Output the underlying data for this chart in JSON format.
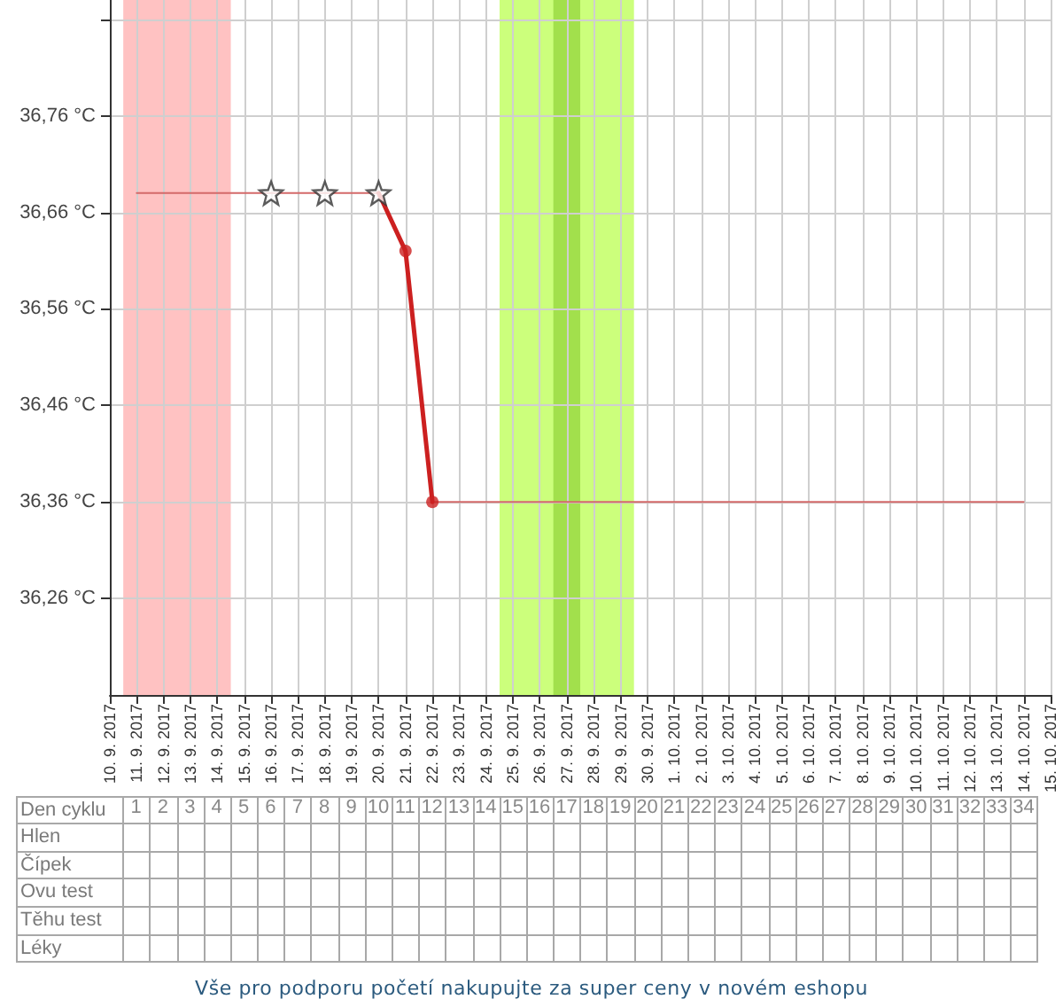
{
  "chart_data": {
    "type": "line",
    "x": [
      "2017-09-11",
      "2017-09-12",
      "2017-09-13",
      "2017-09-14",
      "2017-09-15",
      "2017-09-16",
      "2017-09-17",
      "2017-09-18",
      "2017-09-19",
      "2017-09-20",
      "2017-09-21",
      "2017-09-22",
      "2017-09-23",
      "2017-09-24",
      "2017-09-25",
      "2017-09-26",
      "2017-09-27",
      "2017-09-28",
      "2017-09-29",
      "2017-09-30",
      "2017-10-01",
      "2017-10-02",
      "2017-10-03",
      "2017-10-04",
      "2017-10-05",
      "2017-10-06",
      "2017-10-07",
      "2017-10-08",
      "2017-10-09",
      "2017-10-10",
      "2017-10-11",
      "2017-10-12",
      "2017-10-13",
      "2017-10-14"
    ],
    "series": [
      {
        "color": "#d46a6a",
        "marker": "none",
        "values": [
          36.68,
          36.68,
          36.68,
          36.68,
          36.68,
          36.68,
          36.68,
          36.68,
          36.68,
          36.68,
          null,
          36.36,
          36.36,
          36.36,
          36.36,
          36.36,
          36.36,
          36.36,
          36.36,
          36.36,
          36.36,
          36.36,
          36.36,
          36.36,
          36.36,
          36.36,
          36.36,
          36.36,
          36.36,
          36.36,
          36.36,
          36.36,
          36.36,
          36.36
        ]
      },
      {
        "color": "#cc2020",
        "marker": "none",
        "values": [
          null,
          null,
          null,
          null,
          null,
          null,
          null,
          null,
          null,
          36.68,
          36.62,
          36.36,
          null,
          null,
          null,
          null,
          null,
          null,
          null,
          null,
          null,
          null,
          null,
          null,
          null,
          null,
          null,
          null,
          null,
          null,
          null,
          null,
          null,
          null
        ]
      },
      {
        "type": "scatter",
        "color": "#cc2020",
        "marker": "circle",
        "values": [
          null,
          null,
          null,
          null,
          null,
          null,
          null,
          null,
          null,
          null,
          36.62,
          36.36,
          null,
          null,
          null,
          null,
          null,
          null,
          null,
          null,
          null,
          null,
          null,
          null,
          null,
          null,
          null,
          null,
          null,
          null,
          null,
          null,
          null,
          null
        ]
      },
      {
        "type": "scatter",
        "color": "#333333",
        "marker": "star",
        "values": [
          null,
          null,
          null,
          null,
          null,
          36.68,
          null,
          36.68,
          null,
          36.68,
          null,
          null,
          null,
          null,
          null,
          null,
          null,
          null,
          null,
          null,
          null,
          null,
          null,
          null,
          null,
          null,
          null,
          null,
          null,
          null,
          null,
          null,
          null,
          null
        ]
      }
    ],
    "xlim": [
      "2017-09-10",
      "2017-10-15"
    ],
    "xticks": [
      {
        "value": "2017-09-10",
        "label": "10. 9. 2017"
      },
      {
        "value": "2017-09-11",
        "label": "11. 9. 2017"
      },
      {
        "value": "2017-09-12",
        "label": "12. 9. 2017"
      },
      {
        "value": "2017-09-13",
        "label": "13. 9. 2017"
      },
      {
        "value": "2017-09-14",
        "label": "14. 9. 2017"
      },
      {
        "value": "2017-09-15",
        "label": "15. 9. 2017"
      },
      {
        "value": "2017-09-16",
        "label": "16. 9. 2017"
      },
      {
        "value": "2017-09-17",
        "label": "17. 9. 2017"
      },
      {
        "value": "2017-09-18",
        "label": "18. 9. 2017"
      },
      {
        "value": "2017-09-19",
        "label": "19. 9. 2017"
      },
      {
        "value": "2017-09-20",
        "label": "20. 9. 2017"
      },
      {
        "value": "2017-09-21",
        "label": "21. 9. 2017"
      },
      {
        "value": "2017-09-22",
        "label": "22. 9. 2017"
      },
      {
        "value": "2017-09-23",
        "label": "23. 9. 2017"
      },
      {
        "value": "2017-09-24",
        "label": "24. 9. 2017"
      },
      {
        "value": "2017-09-25",
        "label": "25. 9. 2017"
      },
      {
        "value": "2017-09-26",
        "label": "26. 9. 2017"
      },
      {
        "value": "2017-09-27",
        "label": "27. 9. 2017"
      },
      {
        "value": "2017-09-28",
        "label": "28. 9. 2017"
      },
      {
        "value": "2017-09-29",
        "label": "29. 9. 2017"
      },
      {
        "value": "2017-09-30",
        "label": "30. 9. 2017"
      },
      {
        "value": "2017-10-01",
        "label": "1. 10. 2017"
      },
      {
        "value": "2017-10-02",
        "label": "2. 10. 2017"
      },
      {
        "value": "2017-10-03",
        "label": "3. 10. 2017"
      },
      {
        "value": "2017-10-04",
        "label": "4. 10. 2017"
      },
      {
        "value": "2017-10-05",
        "label": "5. 10. 2017"
      },
      {
        "value": "2017-10-06",
        "label": "6. 10. 2017"
      },
      {
        "value": "2017-10-07",
        "label": "7. 10. 2017"
      },
      {
        "value": "2017-10-08",
        "label": "8. 10. 2017"
      },
      {
        "value": "2017-10-09",
        "label": "9. 10. 2017"
      },
      {
        "value": "2017-10-10",
        "label": "10. 10. 2017"
      },
      {
        "value": "2017-10-11",
        "label": "11. 10. 2017"
      },
      {
        "value": "2017-10-12",
        "label": "12. 10. 2017"
      },
      {
        "value": "2017-10-13",
        "label": "13. 10. 2017"
      },
      {
        "value": "2017-10-14",
        "label": "14. 10. 2017"
      },
      {
        "value": "2017-10-15",
        "label": "15. 10. 2017"
      }
    ],
    "ylim": [
      36.16,
      36.88
    ],
    "yticks": [
      {
        "value": 36.26,
        "label": "36,26 °C"
      },
      {
        "value": 36.36,
        "label": "36,36 °C"
      },
      {
        "value": 36.46,
        "label": "36,46 °C"
      },
      {
        "value": 36.56,
        "label": "36,56 °C"
      },
      {
        "value": 36.66,
        "label": "36,66 °C"
      },
      {
        "value": 36.76,
        "label": "36,76 °C"
      },
      {
        "value": 36.86,
        "label": null
      }
    ],
    "x2label": "Den cyklu",
    "x2lim": [
      -3.5,
      34.5
    ],
    "x2ticks": [
      1,
      2,
      3,
      4,
      5,
      6,
      7,
      8,
      9,
      10,
      11,
      12,
      13,
      14,
      15,
      16,
      17,
      18,
      19,
      20,
      21,
      22,
      23,
      24,
      25,
      26,
      27,
      28,
      29,
      30,
      31,
      32,
      33,
      34
    ],
    "bands": [
      {
        "axis": "x",
        "from": "2017-09-10T12:00",
        "to": "2017-09-14T12:00",
        "color": "#ffc2c2"
      },
      {
        "axis": "x",
        "from": "2017-09-24T12:00",
        "to": "2017-09-29T12:00",
        "color": "#ccff7c"
      },
      {
        "axis": "x",
        "from": "2017-09-26T12:00",
        "to": "2017-09-27T12:00",
        "color": "#a2e04c"
      }
    ],
    "annotations": [
      "Hlen",
      "Čípek",
      "Ovu test",
      "Těhu test",
      "Léky",
      "Vše pro podporu početí nakupujte za super ceny v novém eshopu"
    ],
    "grid": true
  }
}
